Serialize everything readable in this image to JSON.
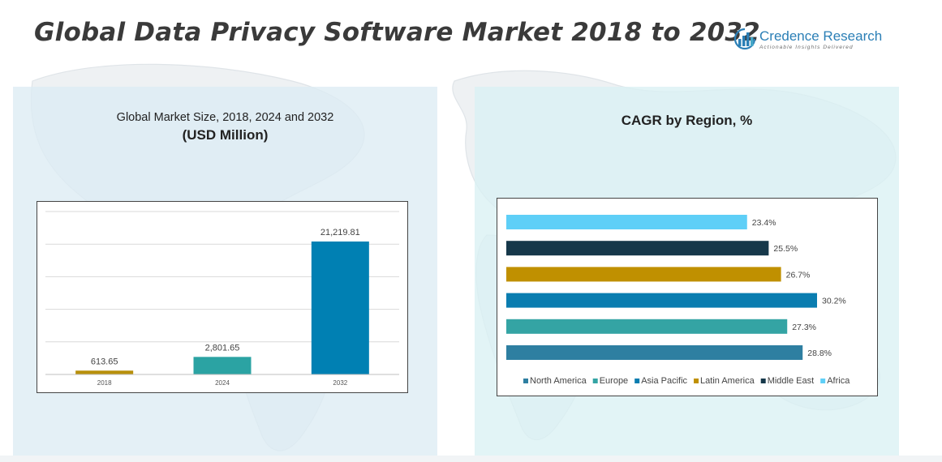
{
  "header": {
    "title": "Global Data Privacy Software Market 2018 to 2032"
  },
  "logo": {
    "name": "Credence Research",
    "tagline": "Actionable Insights Delivered"
  },
  "colors": {
    "bar_2018": "#b8900c",
    "bar_2024": "#2ba3a3",
    "bar_2032": "#0080b3",
    "north_america": "#2e7fa1",
    "europe": "#34a4a4",
    "asia_pacific": "#0a7db0",
    "latin_america": "#c09000",
    "middle_east": "#16384a",
    "africa": "#5ecff7"
  },
  "chart_data": [
    {
      "type": "bar",
      "title": "Global Market Size, 2018, 2024 and 2032",
      "subtitle": "(USD Million)",
      "categories": [
        "2018",
        "2024",
        "2032"
      ],
      "values": [
        613.65,
        2801.65,
        21219.81
      ],
      "value_labels": [
        "613.65",
        "2,801.65",
        "21,219.81"
      ],
      "ylim": [
        0,
        26000
      ],
      "grid": true,
      "xlabel": "",
      "ylabel": ""
    },
    {
      "type": "bar",
      "orientation": "horizontal",
      "title": "CAGR by Region, %",
      "categories": [
        "North America",
        "Europe",
        "Asia Pacific",
        "Latin America",
        "Middle East",
        "Africa"
      ],
      "values": [
        28.8,
        27.3,
        30.2,
        26.7,
        25.5,
        23.4
      ],
      "value_labels": [
        "28.8%",
        "27.3%",
        "30.2%",
        "26.7%",
        "25.5%",
        "23.4%"
      ],
      "legend": "bottom",
      "xlim": [
        0,
        30.2
      ],
      "grid": false
    }
  ]
}
